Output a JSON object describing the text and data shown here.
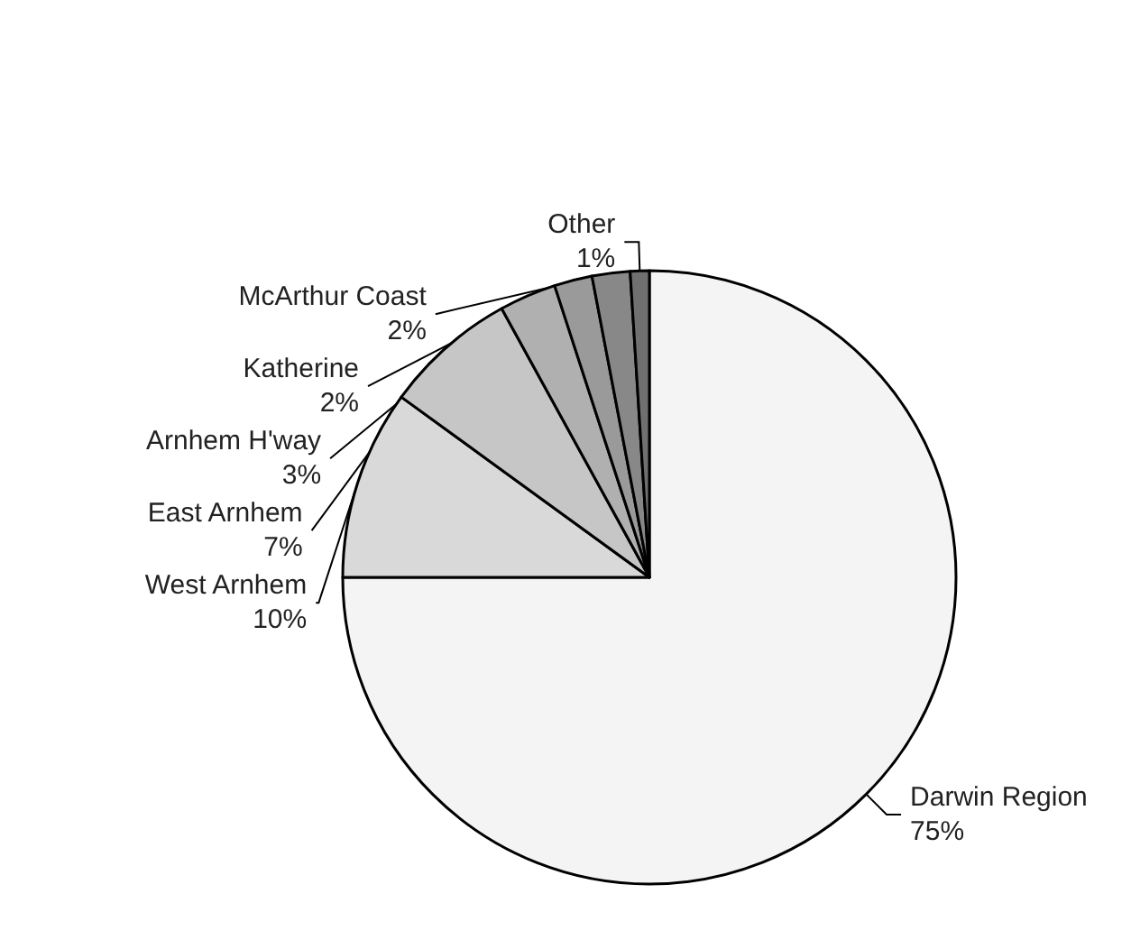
{
  "chart_data": {
    "type": "pie",
    "categories": [
      "Darwin Region",
      "West Arnhem",
      "East Arnhem",
      "Arnhem H'way",
      "Katherine",
      "McArthur Coast",
      "Other"
    ],
    "values": [
      75,
      10,
      7,
      3,
      2,
      2,
      1
    ],
    "value_labels": [
      "75%",
      "10%",
      "7%",
      "3%",
      "2%",
      "2%",
      "1%"
    ],
    "colors": [
      "#f4f4f4",
      "#d9d9d9",
      "#c6c6c6",
      "#b0b0b0",
      "#9a9a9a",
      "#888888",
      "#707070"
    ],
    "legend": false
  }
}
